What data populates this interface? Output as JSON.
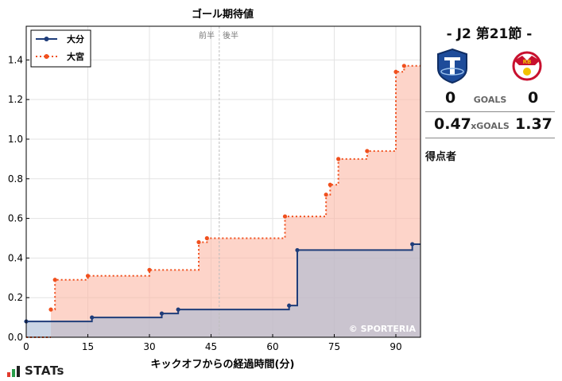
{
  "chart_data": {
    "type": "line",
    "step": true,
    "title": "ゴール期待値",
    "xlabel": "キックオフからの経過時間(分)",
    "ylabel": "",
    "xlim": [
      0,
      96
    ],
    "ylim": [
      0,
      1.57
    ],
    "x_ticks": [
      0,
      15,
      30,
      45,
      60,
      75,
      90
    ],
    "y_ticks": [
      0.0,
      0.2,
      0.4,
      0.6,
      0.8,
      1.0,
      1.2,
      1.4
    ],
    "x_tick_labels": [
      "0",
      "15",
      "30",
      "45",
      "60",
      "75",
      "90"
    ],
    "y_tick_labels": [
      "0.0",
      "0.2",
      "0.4",
      "0.6",
      "0.8",
      "1.0",
      "1.2",
      "1.4"
    ],
    "grid": true,
    "halftime_line_x": 47,
    "halftime_labels": {
      "first": "前半",
      "second": "後半"
    },
    "legend_position": "top-left",
    "watermark": "© SPORTERIA",
    "series": [
      {
        "name": "大分",
        "color": "#1f3d7a",
        "fill": "#a9b9d3",
        "line_style": "solid",
        "points": [
          [
            0,
            0.08
          ],
          [
            16,
            0.1
          ],
          [
            33,
            0.12
          ],
          [
            37,
            0.14
          ],
          [
            64,
            0.16
          ],
          [
            66,
            0.44
          ],
          [
            94,
            0.47
          ],
          [
            96,
            0.47
          ]
        ]
      },
      {
        "name": "大宮",
        "color": "#f0501e",
        "fill": "#fbb8a5",
        "line_style": "dotted",
        "points": [
          [
            6,
            0.14
          ],
          [
            7,
            0.29
          ],
          [
            15,
            0.31
          ],
          [
            30,
            0.34
          ],
          [
            42,
            0.48
          ],
          [
            44,
            0.5
          ],
          [
            63,
            0.61
          ],
          [
            73,
            0.72
          ],
          [
            74,
            0.77
          ],
          [
            76,
            0.9
          ],
          [
            83,
            0.94
          ],
          [
            90,
            1.34
          ],
          [
            92,
            1.37
          ],
          [
            96,
            1.37
          ]
        ]
      }
    ]
  },
  "match": {
    "title": "- J2 第21節 -",
    "home_crest_icon": "oita-trinita-crest-icon",
    "away_crest_icon": "rb-omiya-ardija-crest-icon",
    "goals_label": "GOALS",
    "home_goals": "0",
    "away_goals": "0",
    "xgoals_label": "xGOALS",
    "home_xg": "0.47",
    "away_xg": "1.37",
    "scorers_label": "得点者"
  },
  "branding": {
    "logo_text": "STATs",
    "logo_colors": [
      "#e23b2e",
      "#2a9d4a",
      "#222222"
    ]
  }
}
